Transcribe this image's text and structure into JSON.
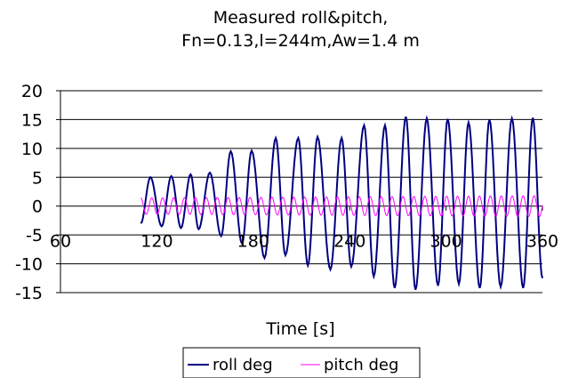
{
  "chart_data": {
    "type": "line",
    "title_lines": [
      "Measured roll&pitch,",
      "Fn=0.13,l=244m,Aw=1.4 m"
    ],
    "xlabel": "Time [s]",
    "ylabel": "",
    "xlim": [
      60,
      360
    ],
    "ylim": [
      -15,
      20
    ],
    "x_ticks": [
      60,
      120,
      180,
      240,
      300,
      360
    ],
    "y_ticks": [
      20,
      15,
      10,
      5,
      0,
      -5,
      -10,
      -15
    ],
    "grid": "horizontal",
    "legend_position": "bottom",
    "series": [
      {
        "name": "roll deg",
        "color": "#000080",
        "x": [
          110,
          116,
          123,
          129,
          135,
          141,
          146,
          153,
          160,
          166,
          173,
          179,
          187,
          194,
          200,
          208,
          214,
          220,
          228,
          235,
          241,
          249,
          255,
          262,
          268,
          275,
          281,
          288,
          295,
          301,
          308,
          314,
          321,
          327,
          334,
          341,
          348,
          354,
          360
        ],
        "y": [
          -3,
          5,
          -3.5,
          5.2,
          -3.8,
          5.5,
          -4,
          5.8,
          -5.2,
          9.5,
          -6.5,
          9.6,
          -9,
          11.8,
          -8.5,
          11.8,
          -10.3,
          12,
          -11,
          11.8,
          -10.5,
          14,
          -12.2,
          14,
          -14.2,
          15.5,
          -14.5,
          15.2,
          -13.8,
          15.1,
          -13.5,
          14.5,
          -14.2,
          15,
          -14,
          15.2,
          -14.2,
          15.3,
          -12.5
        ]
      },
      {
        "name": "pitch deg",
        "color": "#ff00ff",
        "x_start": 110,
        "x_end": 360,
        "period": 6.8,
        "amplitude_start": 1.4,
        "amplitude_end": 1.8,
        "offset": 0
      }
    ]
  }
}
